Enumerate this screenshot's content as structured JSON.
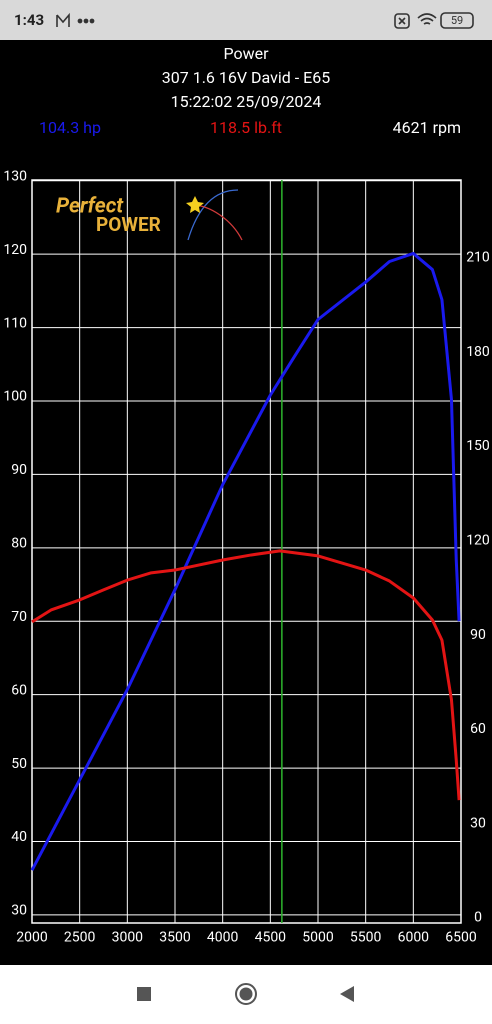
{
  "status_bar": {
    "time": "1:43",
    "battery": "59"
  },
  "chart_data": {
    "type": "line",
    "title": "Power",
    "subtitle": "307 1.6 16V David - E65",
    "timestamp": "15:22:02 25/09/2024",
    "readouts": [
      "104.3 hp",
      "118.5 lb.ft"
    ],
    "cursor": {
      "value": 4621,
      "label": "4621 rpm"
    },
    "logo": [
      "Perfect",
      "POWER"
    ],
    "xlim": [
      2000,
      6500
    ],
    "xticks": [
      2000,
      2500,
      3000,
      3500,
      4000,
      4500,
      5000,
      5500,
      6000,
      6500
    ],
    "ylim": [
      28.9,
      130.1
    ],
    "yticks": [
      30,
      40,
      50,
      60,
      70,
      80,
      90,
      100,
      110,
      120,
      130
    ],
    "y2lim": [
      -1.6,
      234.8
    ],
    "y2ticks": [
      0,
      30,
      60,
      90,
      120,
      150,
      180,
      210
    ],
    "grid": true,
    "series": [
      {
        "name": "hp",
        "color": "#1a1aee",
        "x": [
          2000,
          2500,
          3000,
          3500,
          4000,
          4500,
          4750,
          5000,
          5500,
          5750,
          6000,
          6200,
          6300,
          6400,
          6450,
          6480
        ],
        "values": [
          36.1,
          48.4,
          60.7,
          74.3,
          88.6,
          100.8,
          106.0,
          111.1,
          116.2,
          119.0,
          120.1,
          117.9,
          113.8,
          100.2,
          78.4,
          70
        ]
      },
      {
        "name": "lb.ft",
        "color": "#e31414",
        "axis": "y2",
        "x": [
          2000,
          2200,
          2500,
          2750,
          3000,
          3250,
          3500,
          4000,
          4300,
          4600,
          5000,
          5500,
          5750,
          6000,
          6200,
          6300,
          6400,
          6450,
          6480
        ],
        "values": [
          94.2,
          98.0,
          101.2,
          104.4,
          107.5,
          109.8,
          110.7,
          113.9,
          115.5,
          116.8,
          115.2,
          110.7,
          107.2,
          101.8,
          94.8,
          88.4,
          69.4,
          50.3,
          37.5
        ]
      }
    ]
  }
}
